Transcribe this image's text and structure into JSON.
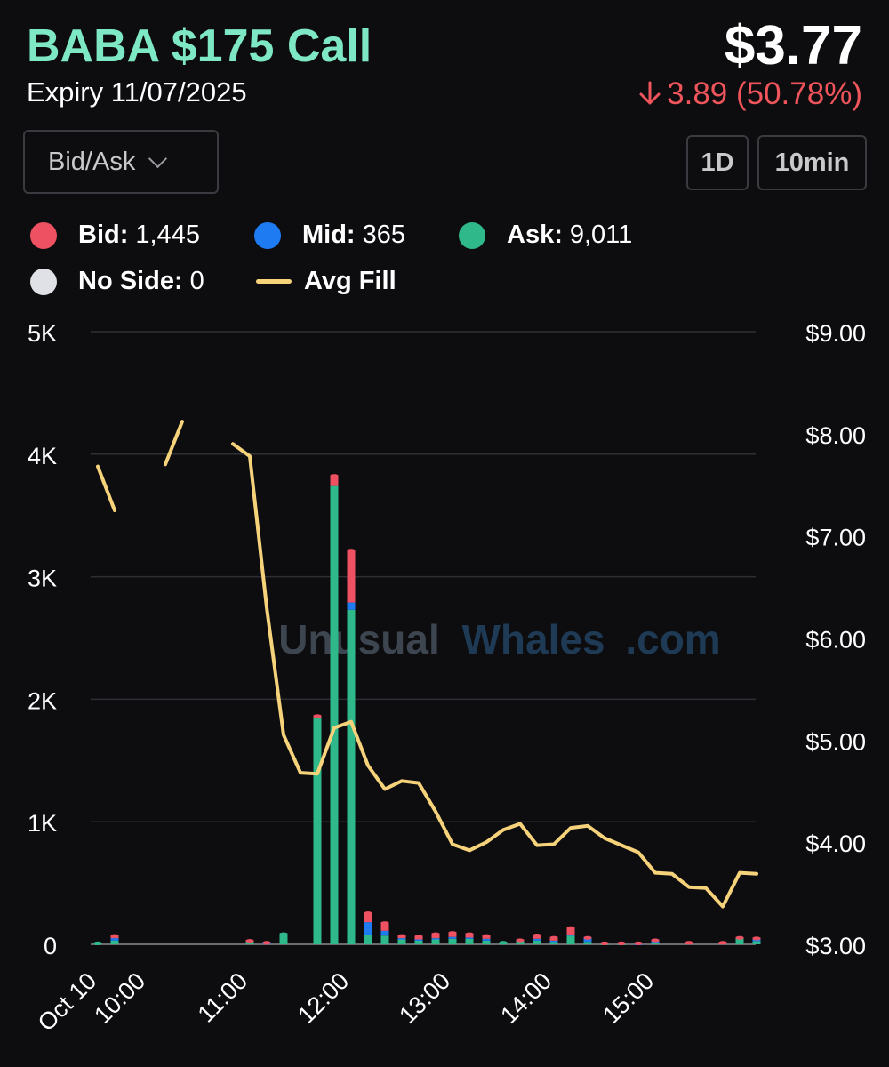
{
  "header": {
    "title": "BABA $175 Call",
    "expiry": "Expiry 11/07/2025",
    "price": "$3.77",
    "change": "3.89 (50.78%)",
    "change_direction": "down"
  },
  "controls": {
    "dropdown_label": "Bid/Ask",
    "range_button": "1D",
    "interval_button": "10min"
  },
  "legend": [
    {
      "label": "Bid:",
      "value": "1,445",
      "color": "#ee5162",
      "kind": "dot"
    },
    {
      "label": "Mid:",
      "value": "365",
      "color": "#1f7bf2",
      "kind": "dot"
    },
    {
      "label": "Ask:",
      "value": "9,011",
      "color": "#2fb98b",
      "kind": "dot"
    },
    {
      "label": "No Side:",
      "value": "0",
      "color": "#dfe1e6",
      "kind": "dot"
    },
    {
      "label": "Avg Fill",
      "value": "",
      "color": "#f6d37a",
      "kind": "line"
    }
  ],
  "watermark": {
    "part1": "Unusual",
    "part2": "Whales",
    "part3": ".com"
  },
  "chart_data": {
    "type": "bar",
    "stacked": true,
    "x_ticks": [
      "Oct 10",
      "10:00",
      "11:00",
      "12:00",
      "13:00",
      "14:00",
      "15:00"
    ],
    "y_left": {
      "ticks": [
        "0",
        "1K",
        "2K",
        "3K",
        "4K",
        "5K"
      ],
      "range": [
        0,
        5000
      ]
    },
    "y_right": {
      "ticks": [
        "$3.00",
        "$4.00",
        "$5.00",
        "$6.00",
        "$7.00",
        "$8.00",
        "$9.00"
      ],
      "range": [
        3,
        9
      ]
    },
    "bar_series": [
      {
        "name": "Ask",
        "color": "#2fb98b"
      },
      {
        "name": "Mid",
        "color": "#1f7bf2"
      },
      {
        "name": "Bid",
        "color": "#ee5162"
      }
    ],
    "bars": [
      {
        "t": "09:30",
        "ask": 15,
        "mid": 0,
        "bid": 0
      },
      {
        "t": "09:40",
        "ask": 30,
        "mid": 20,
        "bid": 25
      },
      {
        "t": "11:00",
        "ask": 25,
        "mid": 0,
        "bid": 10
      },
      {
        "t": "11:10",
        "ask": 0,
        "mid": 20,
        "bid": 0
      },
      {
        "t": "11:20",
        "ask": 90,
        "mid": 0,
        "bid": 0
      },
      {
        "t": "11:40",
        "ask": 1850,
        "mid": 0,
        "bid": 20
      },
      {
        "t": "11:50",
        "ask": 3740,
        "mid": 0,
        "bid": 90
      },
      {
        "t": "12:00",
        "ask": 2730,
        "mid": 60,
        "bid": 430
      },
      {
        "t": "12:10",
        "ask": 80,
        "mid": 100,
        "bid": 80
      },
      {
        "t": "12:20",
        "ask": 70,
        "mid": 40,
        "bid": 70
      },
      {
        "t": "12:30",
        "ask": 40,
        "mid": 10,
        "bid": 25
      },
      {
        "t": "12:40",
        "ask": 30,
        "mid": 10,
        "bid": 30
      },
      {
        "t": "12:50",
        "ask": 40,
        "mid": 10,
        "bid": 40
      },
      {
        "t": "13:00",
        "ask": 45,
        "mid": 15,
        "bid": 40
      },
      {
        "t": "13:10",
        "ask": 45,
        "mid": 10,
        "bid": 35
      },
      {
        "t": "13:20",
        "ask": 30,
        "mid": 15,
        "bid": 30
      },
      {
        "t": "13:30",
        "ask": 20,
        "mid": 0,
        "bid": 0
      },
      {
        "t": "13:40",
        "ask": 30,
        "mid": 0,
        "bid": 10
      },
      {
        "t": "13:50",
        "ask": 30,
        "mid": 15,
        "bid": 35
      },
      {
        "t": "14:00",
        "ask": 20,
        "mid": 10,
        "bid": 30
      },
      {
        "t": "14:10",
        "ask": 70,
        "mid": 10,
        "bid": 60
      },
      {
        "t": "14:20",
        "ask": 20,
        "mid": 40,
        "bid": 0
      },
      {
        "t": "14:30",
        "ask": 5,
        "mid": 0,
        "bid": 10
      },
      {
        "t": "14:40",
        "ask": 5,
        "mid": 0,
        "bid": 10
      },
      {
        "t": "14:50",
        "ask": 0,
        "mid": 5,
        "bid": 10
      },
      {
        "t": "15:00",
        "ask": 15,
        "mid": 10,
        "bid": 15
      },
      {
        "t": "15:20",
        "ask": 0,
        "mid": 0,
        "bid": 20
      },
      {
        "t": "15:40",
        "ask": 0,
        "mid": 0,
        "bid": 20
      },
      {
        "t": "15:50",
        "ask": 50,
        "mid": 0,
        "bid": 10
      },
      {
        "t": "16:00",
        "ask": 25,
        "mid": 15,
        "bid": 15
      }
    ],
    "avg_fill": [
      [
        [
          "09:30",
          7.68
        ],
        [
          "09:40",
          7.25
        ]
      ],
      [
        [
          "10:10",
          7.7
        ],
        [
          "10:20",
          8.12
        ]
      ],
      [
        [
          "10:50",
          7.9
        ],
        [
          "11:00",
          7.78
        ],
        [
          "11:10",
          6.3
        ],
        [
          "11:20",
          5.05
        ],
        [
          "11:30",
          4.68
        ],
        [
          "11:40",
          4.67
        ],
        [
          "11:50",
          5.12
        ],
        [
          "12:00",
          5.18
        ],
        [
          "12:10",
          4.75
        ],
        [
          "12:20",
          4.52
        ],
        [
          "12:30",
          4.6
        ],
        [
          "12:40",
          4.58
        ],
        [
          "12:50",
          4.3
        ],
        [
          "13:00",
          3.98
        ],
        [
          "13:10",
          3.92
        ],
        [
          "13:20",
          4.0
        ],
        [
          "13:30",
          4.12
        ],
        [
          "13:40",
          4.18
        ],
        [
          "13:50",
          3.97
        ],
        [
          "14:00",
          3.98
        ],
        [
          "14:10",
          4.14
        ],
        [
          "14:20",
          4.16
        ],
        [
          "14:30",
          4.04
        ],
        [
          "14:40",
          3.97
        ],
        [
          "14:50",
          3.9
        ],
        [
          "15:00",
          3.7
        ],
        [
          "15:10",
          3.69
        ],
        [
          "15:20",
          3.56
        ],
        [
          "15:30",
          3.55
        ],
        [
          "15:40",
          3.37
        ],
        [
          "15:50",
          3.7
        ],
        [
          "16:00",
          3.69
        ]
      ]
    ]
  }
}
